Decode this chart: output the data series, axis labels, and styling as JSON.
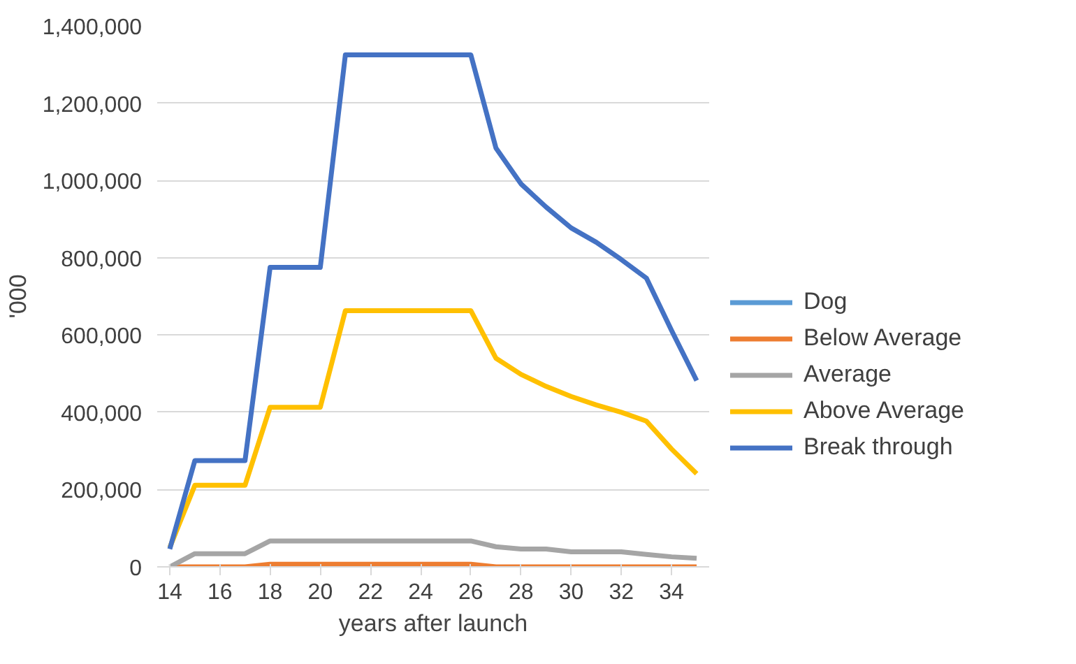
{
  "chart_data": {
    "type": "line",
    "xlabel": "years after launch",
    "ylabel": "'000",
    "x": [
      14,
      15,
      16,
      17,
      18,
      19,
      20,
      21,
      22,
      23,
      24,
      25,
      26,
      27,
      28,
      29,
      30,
      31,
      32,
      33,
      34,
      35
    ],
    "xlim": [
      13.5,
      35.5
    ],
    "xticks": [
      14,
      16,
      18,
      20,
      22,
      24,
      26,
      28,
      30,
      32,
      34
    ],
    "ylim": [
      0,
      1400000
    ],
    "yticks": [
      {
        "value": 0,
        "label": "0"
      },
      {
        "value": 200000,
        "label": "200,000"
      },
      {
        "value": 400000,
        "label": "400,000"
      },
      {
        "value": 600000,
        "label": "600,000"
      },
      {
        "value": 800000,
        "label": "800,000"
      },
      {
        "value": 1000000,
        "label": "1,000,000"
      },
      {
        "value": 1200000,
        "label": "1,200,000"
      },
      {
        "value": 1400000,
        "label": "1,400,000"
      }
    ],
    "grid": "y",
    "legend": "right",
    "marker": "none",
    "line_style": "solid",
    "series": [
      {
        "name": "Dog",
        "color": "#5b9bd5",
        "values": [
          null,
          null,
          null,
          null,
          null,
          null,
          null,
          null,
          null,
          null,
          null,
          null,
          null,
          null,
          null,
          null,
          null,
          null,
          null,
          null,
          null,
          null
        ]
      },
      {
        "name": "Below Average",
        "color": "#ed7d31",
        "values": [
          0,
          0,
          0,
          0,
          7000,
          7000,
          7000,
          7000,
          7000,
          7000,
          7000,
          7000,
          7000,
          0,
          0,
          0,
          0,
          0,
          0,
          0,
          0,
          0
        ]
      },
      {
        "name": "Average",
        "color": "#a5a5a5",
        "values": [
          0,
          34000,
          34000,
          34000,
          67000,
          67000,
          67000,
          67000,
          67000,
          67000,
          67000,
          67000,
          67000,
          52000,
          46000,
          46000,
          39000,
          39000,
          39000,
          32000,
          26000,
          22000
        ]
      },
      {
        "name": "Above Average",
        "color": "#ffc000",
        "values": [
          50000,
          211000,
          211000,
          211000,
          413000,
          413000,
          413000,
          663000,
          663000,
          663000,
          663000,
          663000,
          663000,
          540000,
          498000,
          467000,
          441000,
          419000,
          400000,
          377000,
          305000,
          241000
        ]
      },
      {
        "name": "Break through",
        "color": "#4472c4",
        "values": [
          46000,
          275000,
          275000,
          275000,
          775000,
          775000,
          775000,
          1325000,
          1325000,
          1325000,
          1325000,
          1325000,
          1325000,
          1084000,
          991000,
          931000,
          877000,
          840000,
          795000,
          747000,
          612000,
          482000
        ]
      }
    ]
  }
}
